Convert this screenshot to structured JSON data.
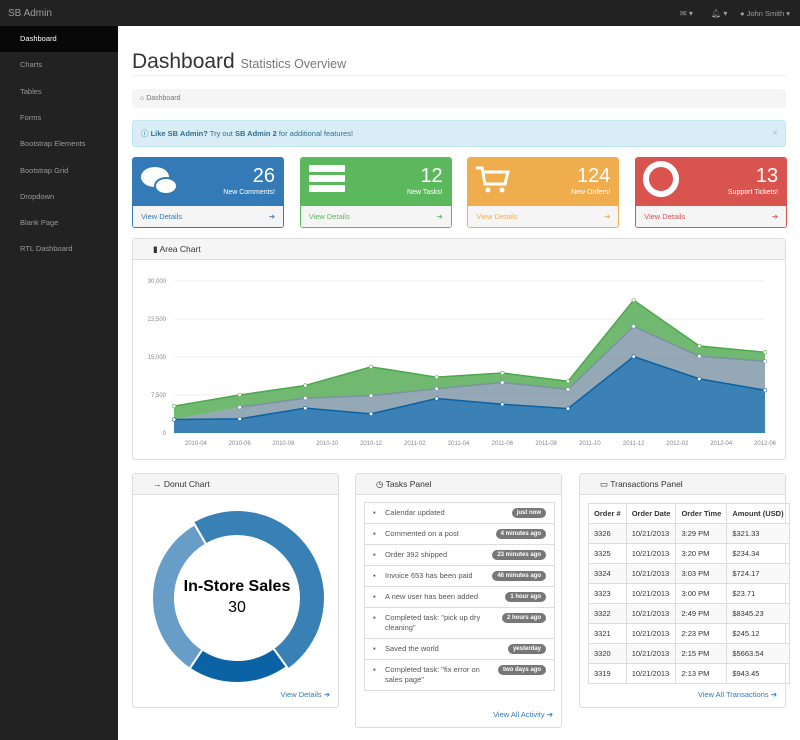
{
  "navbar": {
    "brand": "SB Admin",
    "user": "John Smith"
  },
  "sidebar": [
    "Dashboard",
    "Charts",
    "Tables",
    "Forms",
    "Bootstrap Elements",
    "Bootstrap Grid",
    "Dropdown",
    "Blank Page",
    "RTL Dashboard"
  ],
  "header": {
    "title": "Dashboard",
    "subtitle": "Statistics Overview"
  },
  "breadcrumb": "Dashboard",
  "alert": {
    "lead": "Like SB Admin?",
    "text": "Try out",
    "link": "SB Admin 2",
    "tail": "for additional features!",
    "close": "×"
  },
  "stats": [
    {
      "value": 26,
      "label": "New Comments!",
      "link": "View Details",
      "color": "#337ab7"
    },
    {
      "value": 12,
      "label": "New Tasks!",
      "link": "View Details",
      "color": "#5cb85c"
    },
    {
      "value": 124,
      "label": "New Orders!",
      "link": "View Details",
      "color": "#f0ad4e"
    },
    {
      "value": 13,
      "label": "Support Tickets!",
      "link": "View Details",
      "color": "#d9534f"
    }
  ],
  "area_chart": {
    "type": "area",
    "title": "Area Chart",
    "x": [
      "2010-03",
      "2010-06",
      "2010-09",
      "2010-12",
      "2011-03",
      "2011-06",
      "2011-09",
      "2011-12",
      "2012-03",
      "2012-06"
    ],
    "series": [
      {
        "color": "#0b62a4",
        "values": [
          2666,
          2778,
          4912,
          3767,
          6810,
          5670,
          4820,
          15073,
          10687,
          8432
        ]
      },
      {
        "color": "#7a92a3",
        "values": [
          null,
          2294,
          1969,
          3597,
          1914,
          4293,
          3795,
          5967,
          4460,
          5713
        ]
      },
      {
        "color": "#4da74d",
        "values": [
          2647,
          2441,
          2501,
          5689,
          2293,
          1881,
          1588,
          5175,
          2028,
          1791
        ]
      }
    ],
    "xlim": [
      "2010-03",
      "2012-06"
    ],
    "xticks": [
      "2010-04",
      "2010-06",
      "2010-08",
      "2010-10",
      "2010-12",
      "2011-02",
      "2011-04",
      "2011-06",
      "2011-08",
      "2011-10",
      "2011-12",
      "2012-02",
      "2012-04",
      "2012-06"
    ],
    "ylim": [
      0,
      30000
    ],
    "yticks": [
      0,
      {
        "value": 7500,
        "label": "7,500"
      },
      {
        "value": 15000,
        "label": "15,000"
      },
      {
        "value": 22500,
        "label": "22,500"
      },
      {
        "value": 30000,
        "label": "30,000"
      }
    ],
    "grid": true
  },
  "donut_chart": {
    "type": "donut",
    "title": "Donut Chart",
    "categories": [
      "In-Store Sales",
      null,
      null
    ],
    "values": [
      30,
      12,
      20
    ],
    "colors": [
      "#3980b5",
      "#0b62a4",
      "#679dc6"
    ],
    "highlight": 0,
    "link": "View Details"
  },
  "tasks": {
    "title": "Tasks Panel",
    "items": [
      {
        "text": "Calendar updated",
        "time": "just now"
      },
      {
        "text": "Commented on a post",
        "time": "4 minutes ago"
      },
      {
        "text": "Order 392 shipped",
        "time": "23 minutes ago"
      },
      {
        "text": "Invoice 653 has been paid",
        "time": "46 minutes ago"
      },
      {
        "text": "A new user has been added",
        "time": "1 hour ago"
      },
      {
        "text": "Completed task: \"pick up dry cleaning\"",
        "time": "2 hours ago"
      },
      {
        "text": "Saved the world",
        "time": "yesterday"
      },
      {
        "text": "Completed task: \"fix error on sales page\"",
        "time": "two days ago"
      }
    ],
    "link": "View All Activity"
  },
  "transactions": {
    "title": "Transactions Panel",
    "columns": [
      "Order #",
      "Order Date",
      "Order Time",
      "Amount (USD)"
    ],
    "rows": [
      [
        "3326",
        "10/21/2013",
        "3:29 PM",
        "$321.33"
      ],
      [
        "3325",
        "10/21/2013",
        "3:20 PM",
        "$234.34"
      ],
      [
        "3324",
        "10/21/2013",
        "3:03 PM",
        "$724.17"
      ],
      [
        "3323",
        "10/21/2013",
        "3:00 PM",
        "$23.71"
      ],
      [
        "3322",
        "10/21/2013",
        "2:49 PM",
        "$8345.23"
      ],
      [
        "3321",
        "10/21/2013",
        "2:23 PM",
        "$245.12"
      ],
      [
        "3320",
        "10/21/2013",
        "2:15 PM",
        "$5663.54"
      ],
      [
        "3319",
        "10/21/2013",
        "2:13 PM",
        "$943.45"
      ]
    ],
    "link": "View All Transactions"
  }
}
